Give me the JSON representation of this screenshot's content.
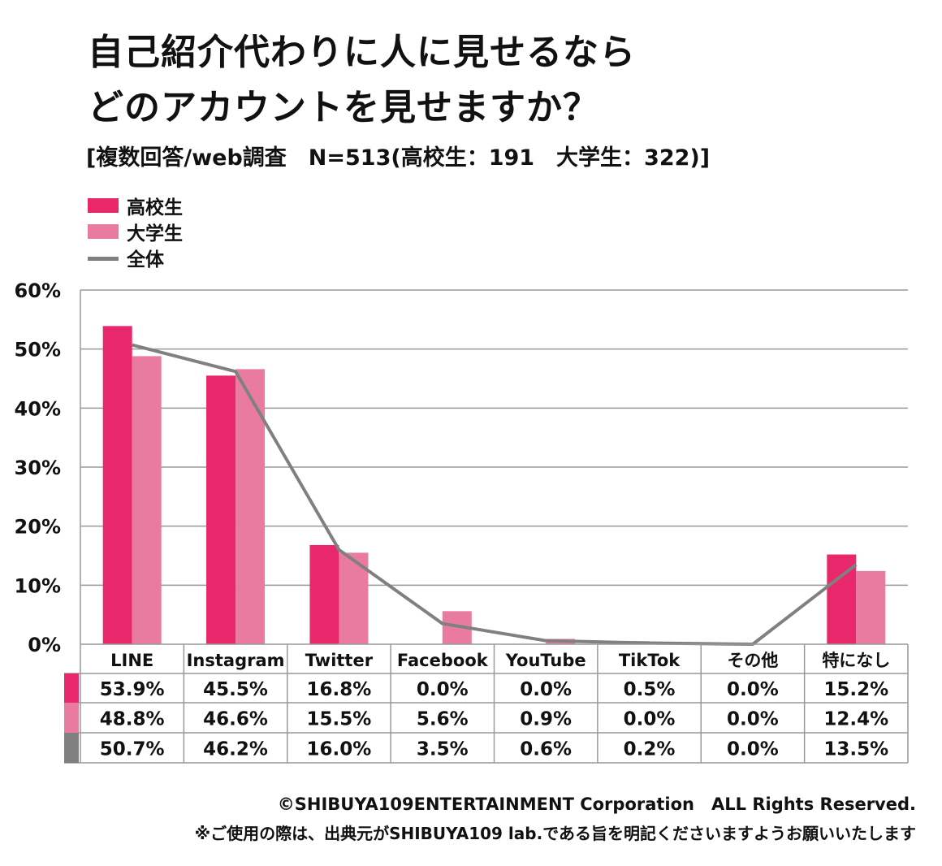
{
  "header": {
    "title_line1": "自己紹介代わりに人に見せるなら",
    "title_line2": "どのアカウントを見せますか？",
    "subtitle": "[複数回答/web調査　N=513(高校生：191　大学生：322)]"
  },
  "legend": [
    {
      "label": "高校生",
      "color": "#E8286A",
      "kind": "bar"
    },
    {
      "label": "大学生",
      "color": "#EA7BA0",
      "kind": "bar"
    },
    {
      "label": "全体",
      "color": "#808080",
      "kind": "line"
    }
  ],
  "chart_data": {
    "type": "bar",
    "categories": [
      "LINE",
      "Instagram",
      "Twitter",
      "Facebook",
      "YouTube",
      "TikTok",
      "その他",
      "特になし"
    ],
    "series": [
      {
        "name": "高校生",
        "kind": "bar",
        "color": "#E8286A",
        "values": [
          53.9,
          45.5,
          16.8,
          0.0,
          0.0,
          0.5,
          0.0,
          15.2
        ],
        "labels": [
          "53.9%",
          "45.5%",
          "16.8%",
          "0.0%",
          "0.0%",
          "0.5%",
          "0.0%",
          "15.2%"
        ]
      },
      {
        "name": "大学生",
        "kind": "bar",
        "color": "#EA7BA0",
        "values": [
          48.8,
          46.6,
          15.5,
          5.6,
          0.9,
          0.0,
          0.0,
          12.4
        ],
        "labels": [
          "48.8%",
          "46.6%",
          "15.5%",
          "5.6%",
          "0.9%",
          "0.0%",
          "0.0%",
          "12.4%"
        ]
      },
      {
        "name": "全体",
        "kind": "line",
        "color": "#808080",
        "values": [
          50.7,
          46.2,
          16.0,
          3.5,
          0.6,
          0.2,
          0.0,
          13.5
        ],
        "labels": [
          "50.7%",
          "46.2%",
          "16.0%",
          "3.5%",
          "0.6%",
          "0.2%",
          "0.0%",
          "13.5%"
        ]
      }
    ],
    "ylim": [
      0,
      60
    ],
    "yticks": [
      "0%",
      "10%",
      "20%",
      "30%",
      "40%",
      "50%",
      "60%"
    ],
    "grid": true,
    "legend_position": "top-left",
    "data_table": true
  },
  "footer": {
    "copyright": "©SHIBUYA109ENTERTAINMENT Corporation　ALL Rights Reserved.",
    "note": "※ご使用の際は、出典元がSHIBUYA109 lab.である旨を明記くださいますようお願いいたします"
  }
}
